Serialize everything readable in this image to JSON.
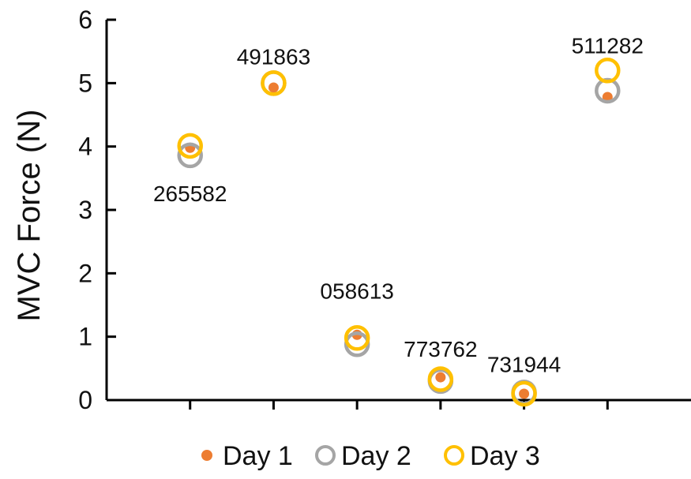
{
  "chart_data": {
    "type": "scatter",
    "title": "",
    "xlabel": "",
    "ylabel": "MVC Force (N)",
    "ylim": [
      0,
      6
    ],
    "yticks": [
      0,
      1,
      2,
      3,
      4,
      5,
      6
    ],
    "x": [
      1,
      2,
      3,
      4,
      5,
      6
    ],
    "xlim": [
      0,
      7
    ],
    "grid": false,
    "legend_position": "bottom",
    "point_labels": [
      "265582",
      "491863",
      "058613",
      "773762",
      "731944",
      "511282"
    ],
    "series": [
      {
        "name": "Day 1",
        "marker": "filled-dot",
        "color": "#ED7D31",
        "values": [
          3.98,
          4.93,
          1.03,
          0.36,
          0.1,
          4.78
        ]
      },
      {
        "name": "Day 2",
        "marker": "hollow-circle",
        "color": "#A5A5A5",
        "values": [
          3.86,
          5.0,
          0.88,
          0.3,
          0.12,
          4.88
        ]
      },
      {
        "name": "Day 3",
        "marker": "hollow-circle",
        "color": "#FFC000",
        "values": [
          4.01,
          5.0,
          0.98,
          0.33,
          0.1,
          5.2
        ]
      }
    ]
  }
}
